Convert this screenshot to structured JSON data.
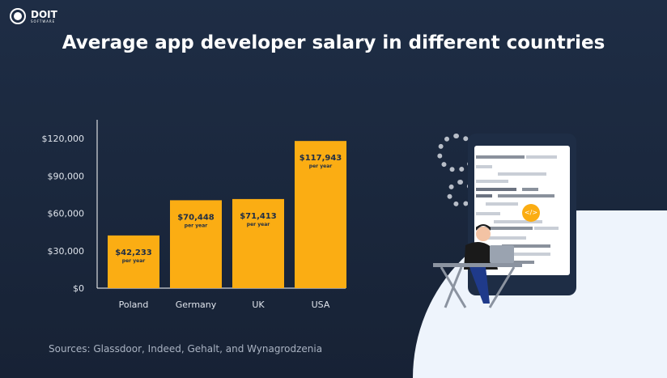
{
  "logo": {
    "name": "DOIT",
    "sub": "SOFTWARE"
  },
  "title": "Average app developer salary in different countries",
  "source": "Sources: Glassdoor, Indeed, Gehalt, and Wynagrodzenia",
  "illustration": {
    "code_badge": "</>"
  },
  "chart_data": {
    "type": "bar",
    "categories": [
      "Poland",
      "Germany",
      "UK",
      "USA"
    ],
    "values": [
      42233,
      70448,
      71413,
      117943
    ],
    "data_labels": [
      "$42,233",
      "$70,448",
      "$71,413",
      "$117,943"
    ],
    "data_sublabel": "per year",
    "yticks": [
      "$0",
      "$30,000",
      "$60,000",
      "$90,000",
      "$120,000"
    ],
    "ytick_values": [
      0,
      30000,
      60000,
      90000,
      120000
    ],
    "ylim": [
      0,
      120000
    ],
    "grid": false,
    "bar_color": "#fbad13",
    "label_color": "#1e2d45"
  }
}
